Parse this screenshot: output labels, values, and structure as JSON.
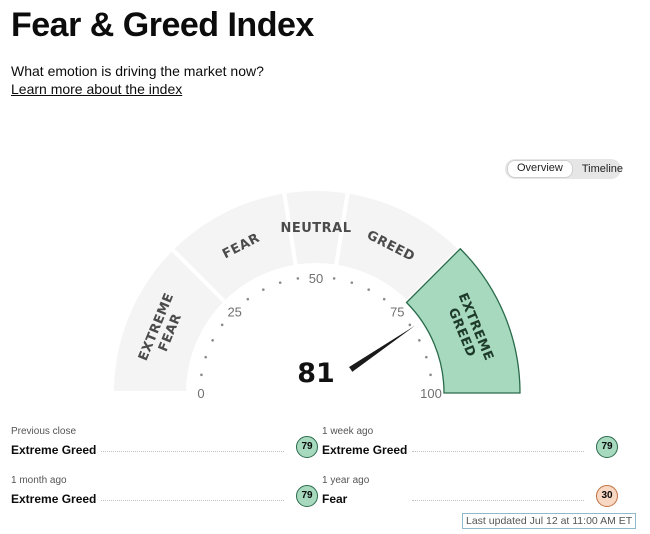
{
  "header": {
    "title": "Fear & Greed Index",
    "subtitle": "What emotion is driving the market now?",
    "learn_link": "Learn more about the index"
  },
  "toggle": {
    "overview": "Overview",
    "timeline": "Timeline",
    "active": "Overview"
  },
  "gauge": {
    "score": 81,
    "score_label": "81",
    "zones": {
      "extreme_fear": [
        "EXTREME",
        "FEAR"
      ],
      "fear": "FEAR",
      "neutral": "NEUTRAL",
      "greed": "GREED",
      "extreme_greed": [
        "EXTREME",
        "GREED"
      ]
    },
    "active_zone": "extreme_greed",
    "active_color": "#a6d9be",
    "ticks": [
      "0",
      "25",
      "50",
      "75",
      "100"
    ]
  },
  "history": {
    "previous_close": {
      "label": "Previous close",
      "value": "Extreme Greed",
      "score": "79"
    },
    "week_ago": {
      "label": "1 week ago",
      "value": "Extreme Greed",
      "score": "79"
    },
    "month_ago": {
      "label": "1 month ago",
      "value": "Extreme Greed",
      "score": "79"
    },
    "year_ago": {
      "label": "1 year ago",
      "value": "Fear",
      "score": "30"
    }
  },
  "last_updated": "Last updated Jul 12 at 11:00 AM ET"
}
